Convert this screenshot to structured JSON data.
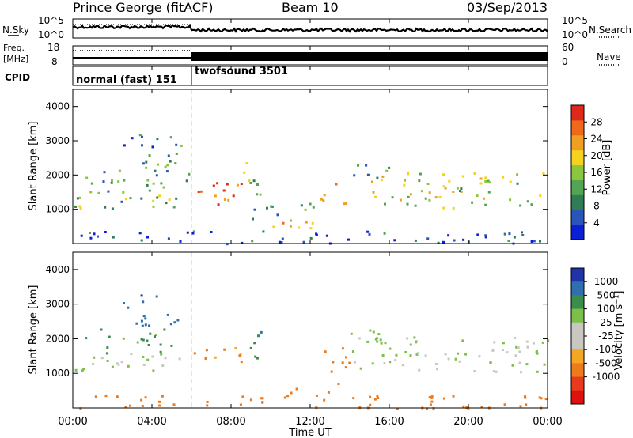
{
  "header": {
    "station": "Prince George (fitACF)",
    "beam": "Beam 10",
    "date": "03/Sep/2013"
  },
  "noise_panel": {
    "left_label": "N.Sky",
    "right_label": "N.Search",
    "left_ticks": [
      "10^5",
      "10^0"
    ],
    "right_ticks": [
      "10^5",
      "10^0"
    ]
  },
  "freq_panel": {
    "left_label_top": "Freq.",
    "left_label_bottom": "[MHz]",
    "right_label": "Nave",
    "left_ticks": [
      "18",
      "8"
    ],
    "right_ticks": [
      "60",
      "0"
    ]
  },
  "cpid_panel": {
    "label": "CPID",
    "modes": [
      {
        "name": "normal (fast) 151",
        "start_hour": 0
      },
      {
        "name": "twofsound 3501",
        "start_hour": 6
      }
    ]
  },
  "x_axis": {
    "label": "Time UT",
    "ticks": [
      "00:00",
      "04:00",
      "08:00",
      "12:00",
      "16:00",
      "20:00",
      "00:00"
    ],
    "range_hours": [
      0,
      24
    ]
  },
  "colors": {
    "power_scale": [
      "#0a1fd6",
      "#2a55b8",
      "#2e7d55",
      "#53a453",
      "#8cc63e",
      "#f5d21e",
      "#f0a020",
      "#ee6a1a",
      "#e0281a"
    ],
    "velocity_scale": [
      "#1f34a8",
      "#2f6fb0",
      "#3c8d4c",
      "#7cc04a",
      "#c8c8c0",
      "#c8c8c0",
      "#f5a623",
      "#ee7a1c",
      "#e83a1c",
      "#e01010"
    ],
    "velocity_gray": "#c8c8c0"
  },
  "chart_data": [
    {
      "type": "heatmap",
      "title": "Power",
      "ylabel": "Slant Range [km]",
      "xlabel": "",
      "ylim": [
        0,
        4500
      ],
      "xlim": [
        0,
        24
      ],
      "y_ticks": [
        "1000",
        "2000",
        "3000",
        "4000"
      ],
      "colorbar": {
        "label": "Power [dB]",
        "ticks": [
          "4",
          "8",
          "12",
          "16",
          "20",
          "24",
          "28"
        ],
        "range": [
          0,
          32
        ]
      },
      "regions": [
        {
          "t": [
            0,
            6.0
          ],
          "r": [
            1050,
            1500
          ],
          "v": 13
        },
        {
          "t": [
            0.5,
            5.0
          ],
          "r": [
            1500,
            2300
          ],
          "v": 11
        },
        {
          "t": [
            2.5,
            5.5
          ],
          "r": [
            2300,
            3300
          ],
          "v": 9
        },
        {
          "t": [
            5.5,
            6.0
          ],
          "r": [
            1700,
            2300
          ],
          "v": 12
        },
        {
          "t": [
            6.0,
            8.5
          ],
          "r": [
            1050,
            1800
          ],
          "v": 27
        },
        {
          "t": [
            8.5,
            9.5
          ],
          "r": [
            1400,
            2500
          ],
          "v": 15
        },
        {
          "t": [
            9.0,
            12.5
          ],
          "r": [
            750,
            1250
          ],
          "v": 10
        },
        {
          "t": [
            10.0,
            13.5
          ],
          "r": [
            450,
            750
          ],
          "v": 21
        },
        {
          "t": [
            12.5,
            14.0
          ],
          "r": [
            1050,
            1900
          ],
          "v": 22
        },
        {
          "t": [
            14.0,
            24.0
          ],
          "r": [
            1050,
            1500
          ],
          "v": 18
        },
        {
          "t": [
            15.0,
            24.0
          ],
          "r": [
            1500,
            2100
          ],
          "v": 17
        },
        {
          "t": [
            14.0,
            16.0
          ],
          "r": [
            1800,
            2400
          ],
          "v": 13
        },
        {
          "t": [
            0,
            24.0
          ],
          "r": [
            0,
            400
          ],
          "v": 5
        }
      ]
    },
    {
      "type": "heatmap",
      "title": "Velocity",
      "ylabel": "Slant Range [km]",
      "xlabel": "Time UT",
      "ylim": [
        0,
        4500
      ],
      "xlim": [
        0,
        24
      ],
      "y_ticks": [
        "1000",
        "2000",
        "3000",
        "4000"
      ],
      "colorbar": {
        "label": "Velocity [m s⁻¹]",
        "ticks": [
          "1000",
          "500",
          "100",
          "25",
          "-25",
          "-100",
          "-500",
          "-1000"
        ]
      },
      "regions": [
        {
          "t": [
            0,
            6.0
          ],
          "r": [
            1050,
            1600
          ],
          "v": 0
        },
        {
          "t": [
            0.5,
            5.0
          ],
          "r": [
            1600,
            2300
          ],
          "v": 30
        },
        {
          "t": [
            2.5,
            5.5
          ],
          "r": [
            2300,
            3300
          ],
          "v": 400
        },
        {
          "t": [
            6.0,
            8.5
          ],
          "r": [
            1050,
            1800
          ],
          "v": -150
        },
        {
          "t": [
            8.5,
            9.5
          ],
          "r": [
            1400,
            2500
          ],
          "v": 80
        },
        {
          "t": [
            10.0,
            13.5
          ],
          "r": [
            450,
            750
          ],
          "v": -300
        },
        {
          "t": [
            12.5,
            14.0
          ],
          "r": [
            1050,
            1900
          ],
          "v": -200
        },
        {
          "t": [
            14.0,
            24.0
          ],
          "r": [
            1050,
            2100
          ],
          "v": 0
        },
        {
          "t": [
            14.0,
            16.0
          ],
          "r": [
            1800,
            2400
          ],
          "v": 10
        },
        {
          "t": [
            0,
            24.0
          ],
          "r": [
            0,
            400
          ],
          "v": -200
        }
      ]
    }
  ]
}
